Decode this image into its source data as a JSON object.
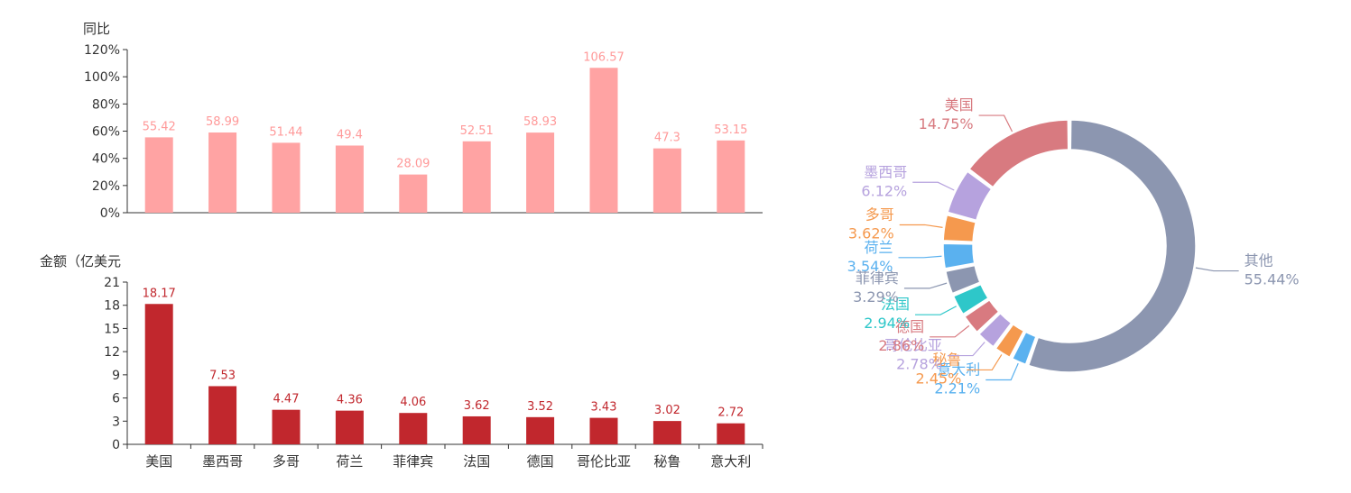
{
  "colors": {
    "growth_bar": "#ffa3a3",
    "growth_label": "#ff9999",
    "amount_bar": "#c1272d",
    "amount_label": "#c1272d",
    "axis": "#333333"
  },
  "chart_data": [
    {
      "id": "growth",
      "type": "bar",
      "ylabel": "同比",
      "categories": [
        "美国",
        "墨西哥",
        "多哥",
        "荷兰",
        "菲律宾",
        "法国",
        "德国",
        "哥伦比亚",
        "秘鲁",
        "意大利"
      ],
      "values": [
        55.42,
        58.99,
        51.44,
        49.4,
        28.09,
        52.51,
        58.93,
        106.57,
        47.3,
        53.15
      ],
      "value_labels": [
        "55.42",
        "58.99",
        "51.44",
        "49.4",
        "28.09",
        "52.51",
        "58.93",
        "106.57",
        "47.3",
        "53.15"
      ],
      "ylim": [
        0,
        120
      ],
      "yticks": [
        0,
        20,
        40,
        60,
        80,
        100,
        120
      ],
      "ytick_labels": [
        "0%",
        "20%",
        "40%",
        "60%",
        "80%",
        "100%",
        "120%"
      ]
    },
    {
      "id": "amount",
      "type": "bar",
      "ylabel": "金额（亿美元",
      "categories": [
        "美国",
        "墨西哥",
        "多哥",
        "荷兰",
        "菲律宾",
        "法国",
        "德国",
        "哥伦比亚",
        "秘鲁",
        "意大利"
      ],
      "values": [
        18.17,
        7.53,
        4.47,
        4.36,
        4.06,
        3.62,
        3.52,
        3.43,
        3.02,
        2.72
      ],
      "value_labels": [
        "18.17",
        "7.53",
        "4.47",
        "4.36",
        "4.06",
        "3.62",
        "3.52",
        "3.43",
        "3.02",
        "2.72"
      ],
      "ylim": [
        0,
        21
      ],
      "yticks": [
        0,
        3,
        6,
        9,
        12,
        15,
        18,
        21
      ],
      "ytick_labels": [
        "0",
        "3",
        "6",
        "9",
        "12",
        "15",
        "18",
        "21"
      ]
    },
    {
      "id": "share",
      "type": "pie",
      "variant": "donut",
      "slices": [
        {
          "name": "其他",
          "value": 55.44,
          "label": "55.44%",
          "color": "#8c96b0"
        },
        {
          "name": "意大利",
          "value": 2.21,
          "label": "2.21%",
          "color": "#5ab1ef"
        },
        {
          "name": "秘鲁",
          "value": 2.45,
          "label": "2.45%",
          "color": "#f5994e"
        },
        {
          "name": "哥伦比亚",
          "value": 2.78,
          "label": "2.78%",
          "color": "#b6a2de"
        },
        {
          "name": "德国",
          "value": 2.86,
          "label": "2.86%",
          "color": "#d87a80"
        },
        {
          "name": "法国",
          "value": 2.94,
          "label": "2.94%",
          "color": "#2ec7c9"
        },
        {
          "name": "菲律宾",
          "value": 3.29,
          "label": "3.29%",
          "color": "#8c96b0"
        },
        {
          "name": "荷兰",
          "value": 3.54,
          "label": "3.54%",
          "color": "#5ab1ef"
        },
        {
          "name": "多哥",
          "value": 3.62,
          "label": "3.62%",
          "color": "#f5994e"
        },
        {
          "name": "墨西哥",
          "value": 6.12,
          "label": "6.12%",
          "color": "#b6a2de"
        },
        {
          "name": "美国",
          "value": 14.75,
          "label": "14.75%",
          "color": "#d87a80"
        }
      ]
    }
  ]
}
